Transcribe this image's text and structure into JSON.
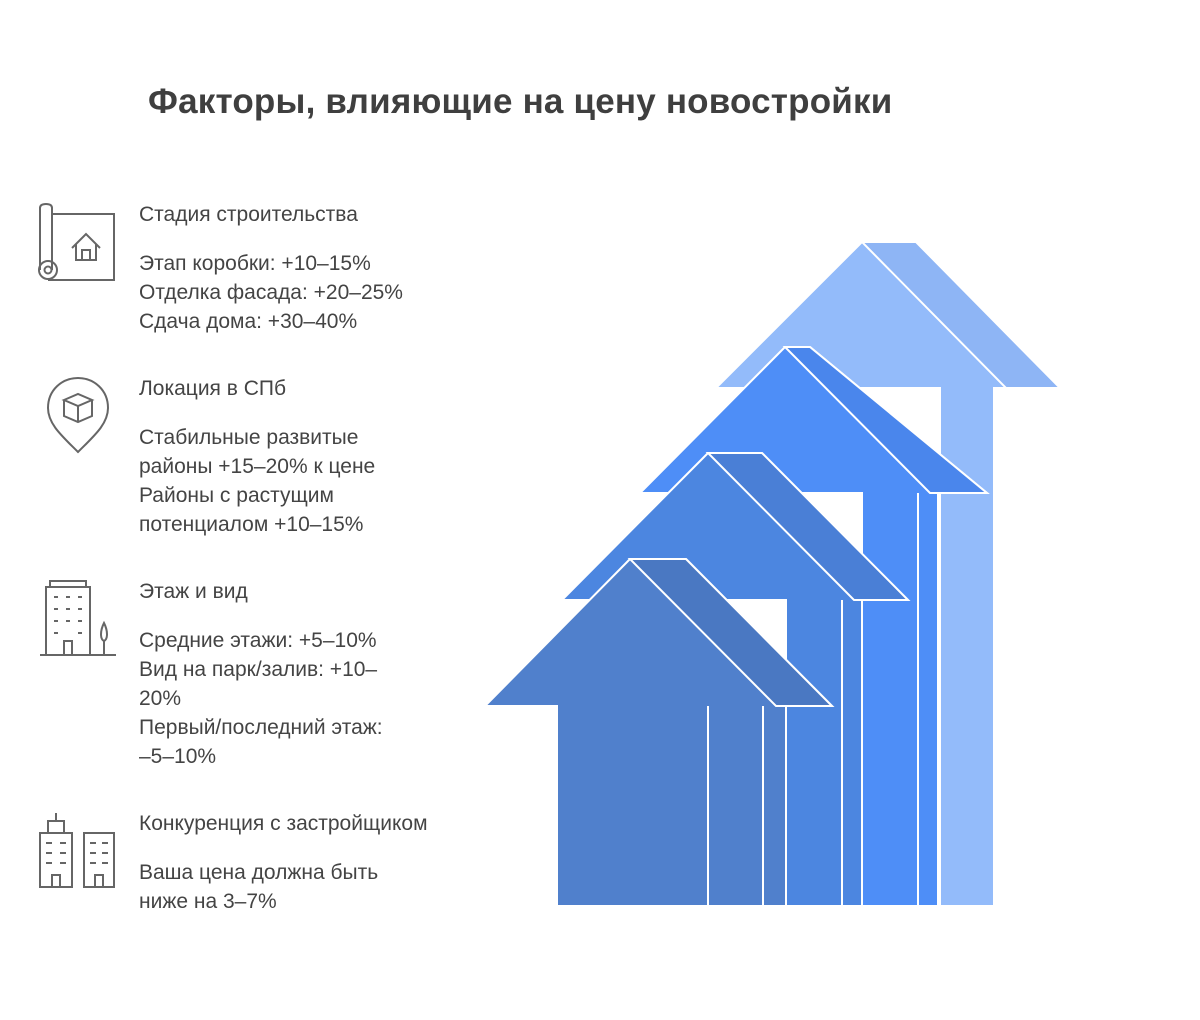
{
  "title": "Факторы, влияющие на цену новостройки",
  "factors": [
    {
      "icon": "blueprint-house-icon",
      "heading": "Стадия строительства",
      "lines": [
        "Этап коробки: +10–15%",
        "Отделка фасада: +20–25%",
        "Сдача дома: +30–40%"
      ]
    },
    {
      "icon": "location-pin-box-icon",
      "heading": "Локация в СПб",
      "lines": [
        "Стабильные развитые",
        "районы +15–20% к цене",
        "Районы с растущим",
        "потенциалом +10–15%"
      ]
    },
    {
      "icon": "apartment-building-icon",
      "heading": "Этаж и вид",
      "lines": [
        "Средние этажи: +5–10%",
        "Вид на парк/залив: +10–",
        "20%",
        "Первый/последний этаж:",
        "–5–10%"
      ]
    },
    {
      "icon": "competing-buildings-icon",
      "heading": "Конкуренция с застройщиком",
      "lines": [
        "Ваша цена должна быть",
        "ниже на 3–7%"
      ]
    }
  ],
  "colors": {
    "arrow_1": "#5080CC",
    "arrow_1_shade": "#4A78C2",
    "arrow_2": "#4C86E0",
    "arrow_2_shade": "#4A7FD6",
    "arrow_3": "#4E8EF7",
    "arrow_3_shade": "#4A86EC",
    "arrow_4": "#93BBFA",
    "arrow_4_shade": "#8EB5F5",
    "text": "#444444",
    "icon_stroke": "#666666"
  }
}
